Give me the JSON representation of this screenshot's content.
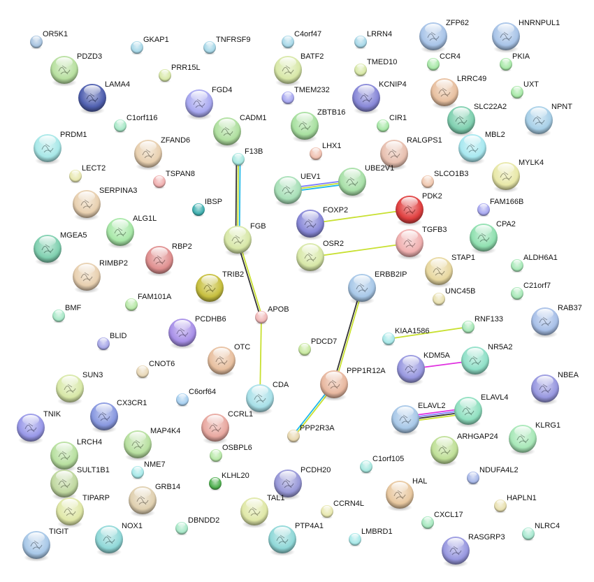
{
  "network": {
    "nodes": [
      {
        "label": "OR5K1",
        "color": "#a8c4e0",
        "has_structure": false
      },
      {
        "label": "GKAP1",
        "color": "#a8d8e8",
        "has_structure": false
      },
      {
        "label": "TNFRSF9",
        "color": "#a8d8e8",
        "has_structure": false
      },
      {
        "label": "C4orf47",
        "color": "#a8d8e8",
        "has_structure": false
      },
      {
        "label": "LRRN4",
        "color": "#a8d8e8",
        "has_structure": false
      },
      {
        "label": "ZFP62",
        "color": "#a8c4e8",
        "has_structure": true
      },
      {
        "label": "HNRNPUL1",
        "color": "#a8c4e8",
        "has_structure": true
      },
      {
        "label": "PDZD3",
        "color": "#b8e0a0",
        "has_structure": true
      },
      {
        "label": "PRR15L",
        "color": "#d8e8a8",
        "has_structure": false
      },
      {
        "label": "BATF2",
        "color": "#d8e8a8",
        "has_structure": true
      },
      {
        "label": "TMED10",
        "color": "#d8e8a8",
        "has_structure": false
      },
      {
        "label": "CCR4",
        "color": "#a8e8a8",
        "has_structure": false
      },
      {
        "label": "PKIA",
        "color": "#a8e8a8",
        "has_structure": false
      },
      {
        "label": "LAMA4",
        "color": "#5060b0",
        "has_structure": true
      },
      {
        "label": "FGD4",
        "color": "#a8a8f0",
        "has_structure": true
      },
      {
        "label": "TMEM232",
        "color": "#a8a8f0",
        "has_structure": false
      },
      {
        "label": "KCNIP4",
        "color": "#8888d8",
        "has_structure": true
      },
      {
        "label": "LRRC49",
        "color": "#e8c0a0",
        "has_structure": true
      },
      {
        "label": "UXT",
        "color": "#a8e8a8",
        "has_structure": false
      },
      {
        "label": "C1orf116",
        "color": "#a8e8c8",
        "has_structure": false
      },
      {
        "label": "CADM1",
        "color": "#b0e0a0",
        "has_structure": true
      },
      {
        "label": "ZBTB16",
        "color": "#a8e0a0",
        "has_structure": true
      },
      {
        "label": "CIR1",
        "color": "#a8e8a8",
        "has_structure": false
      },
      {
        "label": "SLC22A2",
        "color": "#80d0b0",
        "has_structure": true
      },
      {
        "label": "NPNT",
        "color": "#a8d0e8",
        "has_structure": true
      },
      {
        "label": "PRDM1",
        "color": "#a8e8e8",
        "has_structure": true
      },
      {
        "label": "ZFAND6",
        "color": "#e8d0b0",
        "has_structure": true
      },
      {
        "label": "F13B",
        "color": "#a8e8e0",
        "has_structure": false
      },
      {
        "label": "LHX1",
        "color": "#f0c0b0",
        "has_structure": false
      },
      {
        "label": "RALGPS1",
        "color": "#e8c0b0",
        "has_structure": true
      },
      {
        "label": "MBL2",
        "color": "#a8e8f0",
        "has_structure": true
      },
      {
        "label": "LECT2",
        "color": "#e8e8b0",
        "has_structure": false
      },
      {
        "label": "TSPAN8",
        "color": "#f0b0b0",
        "has_structure": false
      },
      {
        "label": "UEV1",
        "color": "#a8e0b8",
        "has_structure": true
      },
      {
        "label": "UBE2V1",
        "color": "#a8e0a8",
        "has_structure": true
      },
      {
        "label": "SLCO1B3",
        "color": "#f0c8b0",
        "has_structure": false
      },
      {
        "label": "MYLK4",
        "color": "#e8e8a8",
        "has_structure": true
      },
      {
        "label": "SERPINA3",
        "color": "#e8d0b0",
        "has_structure": true
      },
      {
        "label": "IBSP",
        "color": "#40b0b0",
        "has_structure": false
      },
      {
        "label": "PDK2",
        "color": "#e04040",
        "has_structure": true
      },
      {
        "label": "FAM166B",
        "color": "#a8a8f0",
        "has_structure": false
      },
      {
        "label": "ALG1L",
        "color": "#a8e8a8",
        "has_structure": true
      },
      {
        "label": "FGB",
        "color": "#d8e8a8",
        "has_structure": true
      },
      {
        "label": "FOXP2",
        "color": "#8888d8",
        "has_structure": true
      },
      {
        "label": "TGFB3",
        "color": "#f0b0b0",
        "has_structure": true
      },
      {
        "label": "CPA2",
        "color": "#90e0b0",
        "has_structure": true
      },
      {
        "label": "MGEA5",
        "color": "#80d0b0",
        "has_structure": true
      },
      {
        "label": "RBP2",
        "color": "#e09090",
        "has_structure": true
      },
      {
        "label": "OSR2",
        "color": "#d8e8a8",
        "has_structure": true
      },
      {
        "label": "STAP1",
        "color": "#e8d8a0",
        "has_structure": true
      },
      {
        "label": "ALDH6A1",
        "color": "#a8e8b8",
        "has_structure": false
      },
      {
        "label": "RIMBP2",
        "color": "#e8d0b0",
        "has_structure": true
      },
      {
        "label": "TRIB2",
        "color": "#c8c040",
        "has_structure": true
      },
      {
        "label": "ERBB2IP",
        "color": "#a8c8e8",
        "has_structure": true
      },
      {
        "label": "UNC45B",
        "color": "#e8e0b0",
        "has_structure": false
      },
      {
        "label": "C21orf7",
        "color": "#a8e8b8",
        "has_structure": false
      },
      {
        "label": "FAM101A",
        "color": "#b8e8a8",
        "has_structure": false
      },
      {
        "label": "BMF",
        "color": "#a8e8c8",
        "has_structure": false
      },
      {
        "label": "APOB",
        "color": "#f0b8b8",
        "has_structure": false
      },
      {
        "label": "RAB37",
        "color": "#a8c0e8",
        "has_structure": true
      },
      {
        "label": "PCDHB6",
        "color": "#a890e8",
        "has_structure": true
      },
      {
        "label": "RNF133",
        "color": "#a8e8b8",
        "has_structure": false
      },
      {
        "label": "KIAA1586",
        "color": "#a8e8e8",
        "has_structure": false
      },
      {
        "label": "BLID",
        "color": "#a8a8e8",
        "has_structure": false
      },
      {
        "label": "PDCD7",
        "color": "#c8e8a0",
        "has_structure": false
      },
      {
        "label": "OTC",
        "color": "#e8c0a0",
        "has_structure": true
      },
      {
        "label": "NR5A2",
        "color": "#90e0c8",
        "has_structure": true
      },
      {
        "label": "KDM5A",
        "color": "#9898e0",
        "has_structure": true
      },
      {
        "label": "CNOT6",
        "color": "#e8d8b8",
        "has_structure": false
      },
      {
        "label": "SUN3",
        "color": "#d8e8a8",
        "has_structure": true
      },
      {
        "label": "PPP1R12A",
        "color": "#e8b8a0",
        "has_structure": true
      },
      {
        "label": "NBEA",
        "color": "#9898e0",
        "has_structure": true
      },
      {
        "label": "CDA",
        "color": "#a8e0e8",
        "has_structure": true
      },
      {
        "label": "C6orf64",
        "color": "#a8d0f0",
        "has_structure": false
      },
      {
        "label": "ELAVL4",
        "color": "#90e0c0",
        "has_structure": true
      },
      {
        "label": "ELAVL2",
        "color": "#a8c8e8",
        "has_structure": true
      },
      {
        "label": "CX3CR1",
        "color": "#8898e0",
        "has_structure": true
      },
      {
        "label": "TNIK",
        "color": "#9898e8",
        "has_structure": true
      },
      {
        "label": "CCRL1",
        "color": "#e8a8a0",
        "has_structure": true
      },
      {
        "label": "PPP2R3A",
        "color": "#e8d8b0",
        "has_structure": false
      },
      {
        "label": "MAP4K4",
        "color": "#b8e0a0",
        "has_structure": true
      },
      {
        "label": "KLRG1",
        "color": "#a8e8b8",
        "has_structure": true
      },
      {
        "label": "ARHGAP24",
        "color": "#c0e098",
        "has_structure": true
      },
      {
        "label": "LRCH4",
        "color": "#b8e0a0",
        "has_structure": true
      },
      {
        "label": "OSBPL6",
        "color": "#b8e8a8",
        "has_structure": false
      },
      {
        "label": "C1orf105",
        "color": "#a8e8e0",
        "has_structure": false
      },
      {
        "label": "NME7",
        "color": "#a8e8e8",
        "has_structure": false
      },
      {
        "label": "NDUFA4L2",
        "color": "#a8b8e8",
        "has_structure": false
      },
      {
        "label": "PCDH20",
        "color": "#9898d8",
        "has_structure": true
      },
      {
        "label": "SULT1B1",
        "color": "#c0d8a0",
        "has_structure": true
      },
      {
        "label": "KLHL20",
        "color": "#50b050",
        "has_structure": false
      },
      {
        "label": "HAL",
        "color": "#e8c8a0",
        "has_structure": true
      },
      {
        "label": "GRB14",
        "color": "#e0d0b0",
        "has_structure": true
      },
      {
        "label": "TIPARP",
        "color": "#e0e8a8",
        "has_structure": true
      },
      {
        "label": "TAL1",
        "color": "#e0e8a8",
        "has_structure": true
      },
      {
        "label": "CCRN4L",
        "color": "#e8e8b0",
        "has_structure": false
      },
      {
        "label": "HAPLN1",
        "color": "#e8e0b0",
        "has_structure": false
      },
      {
        "label": "DBNDD2",
        "color": "#a8e8c8",
        "has_structure": false
      },
      {
        "label": "PTP4A1",
        "color": "#90d8d8",
        "has_structure": true
      },
      {
        "label": "CXCL17",
        "color": "#a8e8c0",
        "has_structure": false
      },
      {
        "label": "NOX1",
        "color": "#90d8d8",
        "has_structure": true
      },
      {
        "label": "LMBRD1",
        "color": "#a8e8e8",
        "has_structure": false
      },
      {
        "label": "NLRC4",
        "color": "#a8e8d0",
        "has_structure": false
      },
      {
        "label": "TIGIT",
        "color": "#a8c8e8",
        "has_structure": true
      },
      {
        "label": "RASGRP3",
        "color": "#9898e0",
        "has_structure": true
      }
    ],
    "edges": [
      {
        "from": "F13B",
        "to": "FGB",
        "colors": [
          "#20b8e8",
          "#c8e030",
          "#333333"
        ]
      },
      {
        "from": "FGB",
        "to": "APOB",
        "colors": [
          "#c8e030",
          "#333333"
        ]
      },
      {
        "from": "APOB",
        "to": "CDA",
        "colors": [
          "#c8e030"
        ]
      },
      {
        "from": "UEV1",
        "to": "UBE2V1",
        "colors": [
          "#8080ff",
          "#c8e030",
          "#20b8e8"
        ]
      },
      {
        "from": "FOXP2",
        "to": "PDK2",
        "colors": [
          "#c8e030"
        ]
      },
      {
        "from": "OSR2",
        "to": "TGFB3",
        "colors": [
          "#c8e030"
        ]
      },
      {
        "from": "ERBB2IP",
        "to": "PPP1R12A",
        "colors": [
          "#c8e030",
          "#333333"
        ]
      },
      {
        "from": "PPP1R12A",
        "to": "PPP2R3A",
        "colors": [
          "#c8e030",
          "#20b8e8"
        ]
      },
      {
        "from": "KIAA1586",
        "to": "RNF133",
        "colors": [
          "#c8e030"
        ]
      },
      {
        "from": "KDM5A",
        "to": "NR5A2",
        "colors": [
          "#e030e0"
        ]
      },
      {
        "from": "ELAVL2",
        "to": "ELAVL4",
        "colors": [
          "#e030e0",
          "#8080ff",
          "#333333",
          "#c8e030"
        ]
      }
    ]
  }
}
